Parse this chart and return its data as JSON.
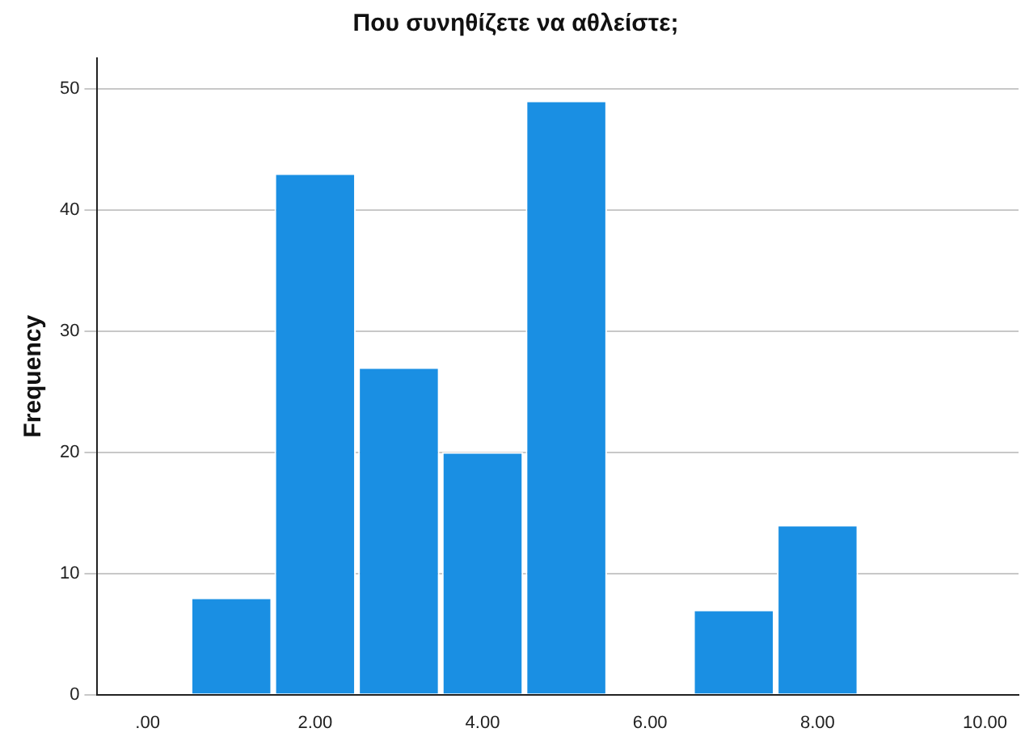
{
  "chart_data": {
    "type": "histogram",
    "title": "Που συνηθίζετε να αθλείστε;",
    "ylabel": "Frequency",
    "bins": [
      0.5,
      1.5,
      2.5,
      3.5,
      4.5,
      5.5,
      6.5,
      7.5,
      8.5
    ],
    "values": [
      8,
      43,
      27,
      20,
      49,
      0,
      7,
      14
    ],
    "color": "#1a8fe3",
    "xlim": [
      -0.6,
      10.4
    ],
    "xticks": [
      {
        "value": 0,
        "label": ".00"
      },
      {
        "value": 2,
        "label": "2.00"
      },
      {
        "value": 4,
        "label": "4.00"
      },
      {
        "value": 6,
        "label": "6.00"
      },
      {
        "value": 8,
        "label": "8.00"
      },
      {
        "value": 10,
        "label": "10.00"
      }
    ],
    "ylim": [
      0,
      52.5
    ],
    "yticks": [
      0,
      10,
      20,
      30,
      40,
      50
    ],
    "grid": "y",
    "legend": false
  }
}
